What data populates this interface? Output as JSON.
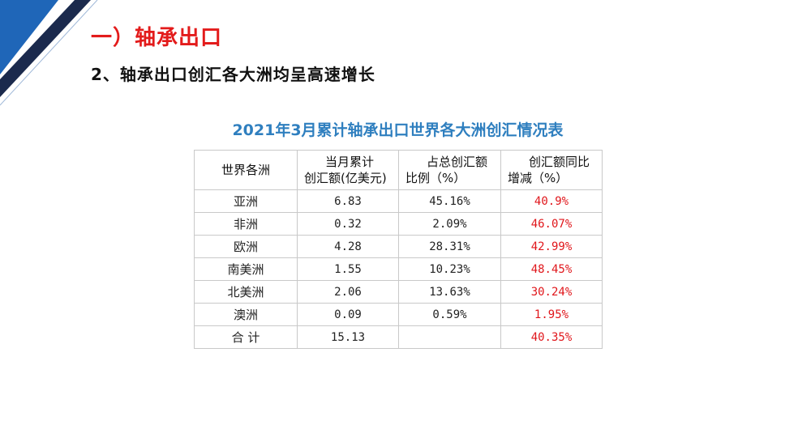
{
  "slide": {
    "section_title": "一）轴承出口",
    "sub_title": "2、轴承出口创汇各大洲均呈高速增长"
  },
  "table": {
    "title": "2021年3月累计轴承出口世界各大洲创汇情况表",
    "headers": [
      [
        "世界各洲"
      ],
      [
        "当月累计",
        "创汇额(亿美元)"
      ],
      [
        "占总创汇额",
        "比例（%）"
      ],
      [
        "创汇额同比",
        "增减（%）"
      ]
    ],
    "rows": [
      {
        "region": "亚洲",
        "amount": "6.83",
        "share": "45.16%",
        "yoy": "40.9%"
      },
      {
        "region": "非洲",
        "amount": "0.32",
        "share": "2.09%",
        "yoy": "46.07%"
      },
      {
        "region": "欧洲",
        "amount": "4.28",
        "share": "28.31%",
        "yoy": "42.99%"
      },
      {
        "region": "南美洲",
        "amount": "1.55",
        "share": "10.23%",
        "yoy": "48.45%"
      },
      {
        "region": "北美洲",
        "amount": "2.06",
        "share": "13.63%",
        "yoy": "30.24%"
      },
      {
        "region": "澳洲",
        "amount": "0.09",
        "share": "0.59%",
        "yoy": "1.95%"
      },
      {
        "region": "合 计",
        "amount": "15.13",
        "share": "",
        "yoy": "40.35%"
      }
    ]
  },
  "colors": {
    "accent_red": "#e31b1b",
    "title_blue": "#2f7fbf",
    "stripe_blue": "#1f66b8",
    "stripe_navy": "#1b2a4d"
  }
}
